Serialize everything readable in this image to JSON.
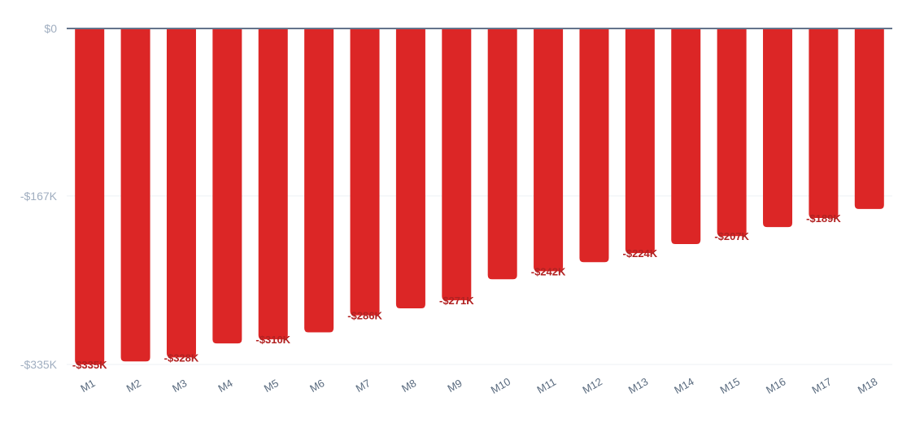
{
  "chart_data": {
    "type": "bar",
    "categories": [
      "M1",
      "M2",
      "M3",
      "M4",
      "M5",
      "M6",
      "M7",
      "M8",
      "M9",
      "M10",
      "M11",
      "M12",
      "M13",
      "M14",
      "M15",
      "M16",
      "M17",
      "M18"
    ],
    "values": [
      -335,
      -332,
      -328,
      -314,
      -310,
      -303,
      -286,
      -279,
      -271,
      -250,
      -242,
      -233,
      -224,
      -215,
      -207,
      -198,
      -189,
      -180
    ],
    "value_unit": "K",
    "ylim": [
      -335,
      0
    ],
    "yticks": [
      0,
      -167,
      -335
    ],
    "ytick_labels": [
      "$0",
      "-$167K",
      "-$335K"
    ],
    "data_labels": [
      {
        "index": 0,
        "text": "-$335K"
      },
      {
        "index": 2,
        "text": "-$328K"
      },
      {
        "index": 4,
        "text": "-$310K"
      },
      {
        "index": 6,
        "text": "-$286K"
      },
      {
        "index": 8,
        "text": "-$271K"
      },
      {
        "index": 10,
        "text": "-$242K"
      },
      {
        "index": 12,
        "text": "-$224K"
      },
      {
        "index": 14,
        "text": "-$207K"
      },
      {
        "index": 16,
        "text": "-$189K"
      }
    ],
    "bar_color": "#dc2626",
    "label_color": "#b22222",
    "grid": true,
    "legend": false,
    "title": "",
    "xlabel": "",
    "ylabel": ""
  }
}
